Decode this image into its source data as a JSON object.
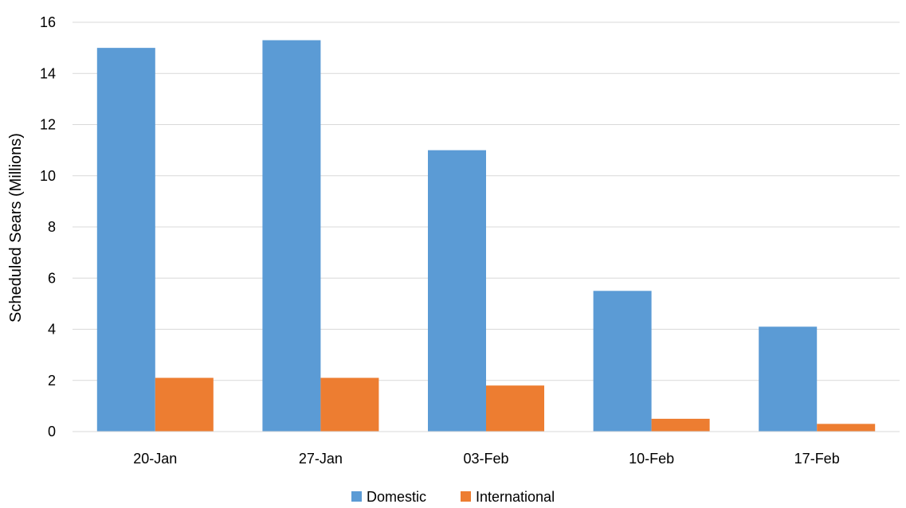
{
  "chart_data": {
    "type": "bar",
    "title": "",
    "xlabel": "",
    "ylabel": "Scheduled Sears (Millions)",
    "categories": [
      "20-Jan",
      "27-Jan",
      "03-Feb",
      "10-Feb",
      "17-Feb"
    ],
    "series": [
      {
        "name": "Domestic",
        "values": [
          15.0,
          15.3,
          11.0,
          5.5,
          4.1
        ],
        "color": "#5b9bd5"
      },
      {
        "name": "International",
        "values": [
          2.1,
          2.1,
          1.8,
          0.5,
          0.3
        ],
        "color": "#ed7d31"
      }
    ],
    "ylim": [
      0,
      16
    ],
    "yticks": [
      "0",
      "2",
      "4",
      "6",
      "8",
      "10",
      "12",
      "14",
      "16"
    ],
    "grid": true,
    "legend_position": "bottom"
  }
}
